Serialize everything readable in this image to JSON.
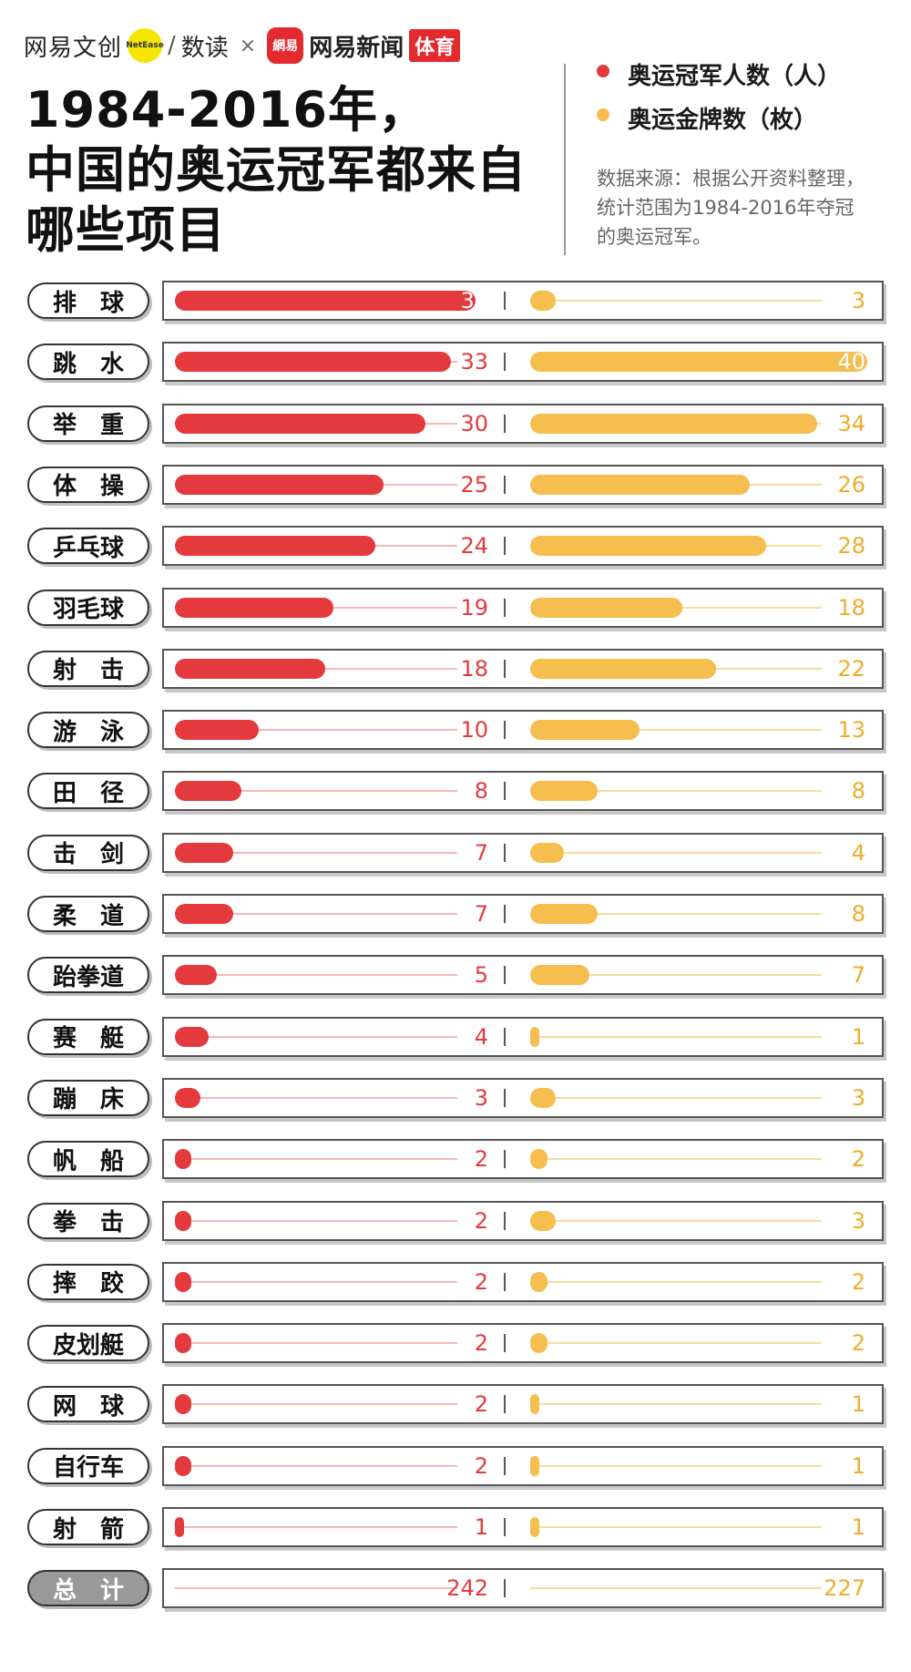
{
  "brand": {
    "wangyi": "网易文创",
    "netease": "NetEase",
    "slash": "/",
    "shudu": "数读",
    "times": "×",
    "news_logo": "網易",
    "news_name": "网易新闻",
    "sport": "体育"
  },
  "title_lines": [
    "1984-2016年，",
    "中国的奥运冠军都来自",
    "哪些项目"
  ],
  "legend": [
    {
      "label": "奥运冠军人数（人）",
      "color": "#e43a3d"
    },
    {
      "label": "奥运金牌数（枚）",
      "color": "#f6bd4f"
    }
  ],
  "source_lines": [
    "数据来源：根据公开资料整理，",
    "统计范围为1984-2016年夺冠",
    "的奥运冠军。"
  ],
  "chart_data": {
    "type": "bar",
    "categories": [
      "排　球",
      "跳　水",
      "举　重",
      "体　操",
      "乒乓球",
      "羽毛球",
      "射　击",
      "游　泳",
      "田　径",
      "击　剑",
      "柔　道",
      "跆拳道",
      "赛　艇",
      "蹦　床",
      "帆　船",
      "拳　击",
      "摔　跤",
      "皮划艇",
      "网　球",
      "自行车",
      "射　箭"
    ],
    "series": [
      {
        "name": "奥运冠军人数（人）",
        "color": "#e43a3d",
        "values": [
          36,
          33,
          30,
          25,
          24,
          19,
          18,
          10,
          8,
          7,
          7,
          5,
          4,
          3,
          2,
          2,
          2,
          2,
          2,
          2,
          1
        ]
      },
      {
        "name": "奥运金牌数（枚）",
        "color": "#f6bd4f",
        "values": [
          3,
          40,
          34,
          26,
          28,
          18,
          22,
          13,
          8,
          4,
          8,
          7,
          1,
          3,
          2,
          3,
          2,
          2,
          1,
          1,
          1
        ]
      }
    ],
    "total": {
      "label": "总　计",
      "values": [
        242,
        227
      ]
    },
    "max": {
      "series0": 36,
      "series1": 40
    }
  }
}
